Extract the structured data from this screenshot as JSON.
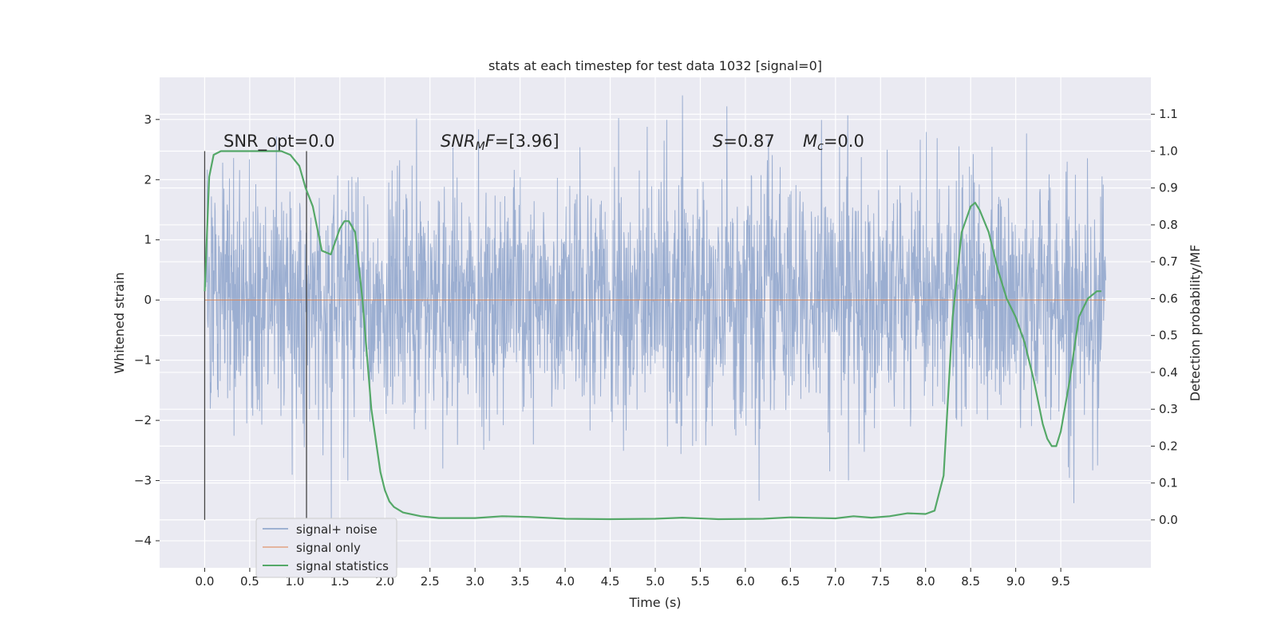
{
  "chart_data": {
    "type": "line",
    "title": "stats at each timestep for test data 1032 [signal=0]",
    "xlabel": "Time (s)",
    "ylabel": "Whitened strain",
    "y2label": "Detection probability/MF",
    "xlim": [
      -0.5,
      10.5
    ],
    "ylim": [
      -4.45,
      3.7
    ],
    "y2lim": [
      -0.13,
      1.2
    ],
    "x_ticks": [
      "0.0",
      "0.5",
      "1.0",
      "1.5",
      "2.0",
      "2.5",
      "3.0",
      "3.5",
      "4.0",
      "4.5",
      "5.0",
      "5.5",
      "6.0",
      "6.5",
      "7.0",
      "7.5",
      "8.0",
      "8.5",
      "9.0",
      "9.5"
    ],
    "y_ticks": [
      "3",
      "2",
      "1",
      "0",
      "−1",
      "−2",
      "−3",
      "−4"
    ],
    "y2_ticks": [
      "1.1",
      "1.0",
      "0.9",
      "0.8",
      "0.7",
      "0.6",
      "0.5",
      "0.4",
      "0.3",
      "0.2",
      "0.1",
      "0.0"
    ],
    "grid": true,
    "legend_position": "lower-left",
    "annotations": [
      {
        "id": "snr-opt",
        "text": "SNR_opt=0.0"
      },
      {
        "id": "snr-mf",
        "text": "SNR_MF=[3.96]"
      },
      {
        "id": "s",
        "text": "S=0.87"
      },
      {
        "id": "mc",
        "text": "M_c=0.0"
      }
    ],
    "vertical_markers": [
      0.0,
      1.13
    ],
    "series": [
      {
        "name": "signal+ noise",
        "axis": "left",
        "color": "#4c72b0",
        "x_range": [
          0.0,
          10.0
        ],
        "std": 1.0,
        "note_values": "dense whitened noise, approx 1 sigma, peaks to about +3.4 and -3.7"
      },
      {
        "name": "signal only",
        "axis": "left",
        "color": "#dd8452",
        "x": [
          0.0,
          10.0
        ],
        "y": [
          0.0,
          0.0
        ]
      },
      {
        "name": "signal statistics",
        "axis": "right",
        "color": "#55a868",
        "x": [
          0.0,
          0.05,
          0.1,
          0.18,
          0.3,
          0.5,
          0.7,
          0.85,
          0.95,
          1.05,
          1.12,
          1.2,
          1.3,
          1.4,
          1.5,
          1.55,
          1.6,
          1.67,
          1.75,
          1.85,
          1.95,
          2.0,
          2.05,
          2.1,
          2.2,
          2.4,
          2.6,
          3.0,
          3.3,
          3.6,
          4.0,
          4.5,
          5.0,
          5.3,
          5.7,
          6.2,
          6.5,
          7.0,
          7.2,
          7.4,
          7.6,
          7.8,
          8.0,
          8.1,
          8.2,
          8.3,
          8.4,
          8.5,
          8.55,
          8.6,
          8.7,
          8.8,
          8.9,
          9.0,
          9.1,
          9.2,
          9.3,
          9.35,
          9.4,
          9.45,
          9.5,
          9.6,
          9.7,
          9.8,
          9.9,
          9.95
        ],
        "y": [
          0.62,
          0.93,
          0.99,
          1.0,
          1.0,
          1.0,
          1.0,
          1.0,
          0.99,
          0.96,
          0.9,
          0.85,
          0.73,
          0.72,
          0.79,
          0.81,
          0.81,
          0.78,
          0.6,
          0.3,
          0.13,
          0.08,
          0.05,
          0.035,
          0.02,
          0.01,
          0.005,
          0.005,
          0.01,
          0.008,
          0.003,
          0.002,
          0.003,
          0.006,
          0.002,
          0.003,
          0.007,
          0.004,
          0.01,
          0.006,
          0.01,
          0.018,
          0.016,
          0.025,
          0.12,
          0.55,
          0.78,
          0.85,
          0.86,
          0.84,
          0.78,
          0.68,
          0.6,
          0.55,
          0.48,
          0.38,
          0.26,
          0.22,
          0.2,
          0.2,
          0.24,
          0.38,
          0.55,
          0.6,
          0.62,
          0.62
        ]
      }
    ]
  }
}
